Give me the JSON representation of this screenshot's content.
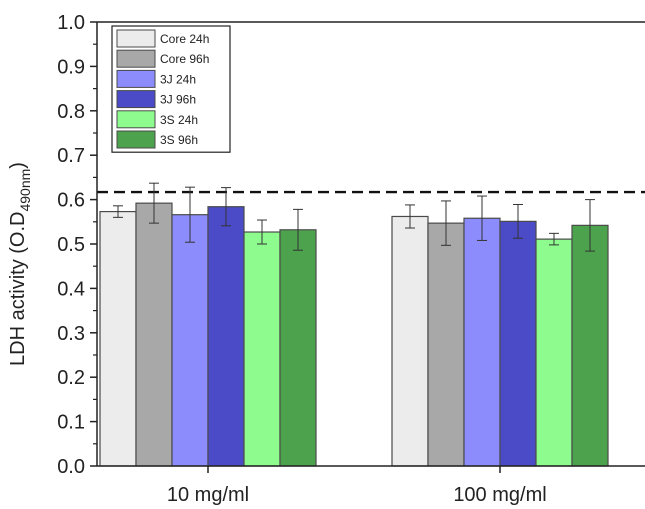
{
  "chart_data": {
    "type": "bar",
    "categories": [
      "10 mg/ml",
      "100 mg/ml"
    ],
    "ylabel": {
      "main": "LDH activity (O.D",
      "sub": "490nm",
      "close": ")"
    },
    "ylim": [
      0.0,
      1.0
    ],
    "yticks": [
      "0.0",
      "0.1",
      "0.2",
      "0.3",
      "0.4",
      "0.5",
      "0.6",
      "0.7",
      "0.8",
      "0.9",
      "1.0"
    ],
    "reference_line": {
      "value": 0.617,
      "style": "dashed"
    },
    "legend_position": "top-left",
    "series": [
      {
        "name": "Core 24h",
        "color": "#ececec",
        "values": [
          0.573,
          0.562
        ],
        "errors": [
          0.013,
          0.026
        ]
      },
      {
        "name": "Core 96h",
        "color": "#a8a8a8",
        "values": [
          0.592,
          0.547
        ],
        "errors": [
          0.045,
          0.05
        ]
      },
      {
        "name": "3J 24h",
        "color": "#8c8cfc",
        "values": [
          0.566,
          0.558
        ],
        "errors": [
          0.062,
          0.05
        ]
      },
      {
        "name": "3J 96h",
        "color": "#4b4bc7",
        "values": [
          0.584,
          0.551
        ],
        "errors": [
          0.043,
          0.038
        ]
      },
      {
        "name": "3S 24h",
        "color": "#8efb8e",
        "values": [
          0.527,
          0.511
        ],
        "errors": [
          0.027,
          0.013
        ]
      },
      {
        "name": "3S 96h",
        "color": "#4da34d",
        "values": [
          0.532,
          0.542
        ],
        "errors": [
          0.046,
          0.058
        ]
      }
    ]
  }
}
